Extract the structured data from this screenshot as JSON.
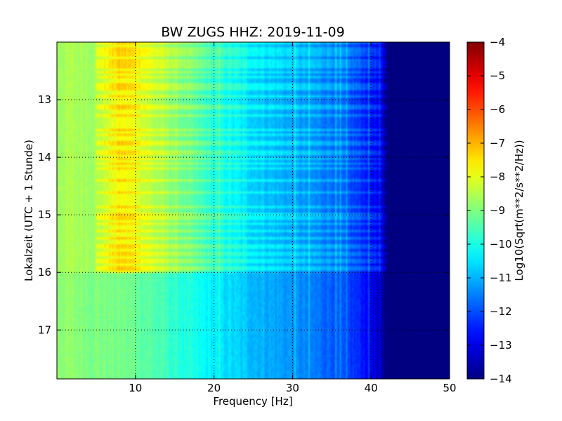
{
  "chart_data": {
    "type": "heatmap",
    "title": "BW ZUGS HHZ: 2019-11-09",
    "xlabel": "Frequency [Hz]",
    "ylabel": "Lokalzeit (UTC + 1 Stunde)",
    "xlim": [
      0,
      50
    ],
    "ylim": [
      17.85,
      12.0
    ],
    "y_axis_inverted": true,
    "x_ticks": [
      10,
      20,
      30,
      40,
      50
    ],
    "y_ticks": [
      13,
      14,
      15,
      16,
      17
    ],
    "grid": true,
    "colorbar": {
      "label": "Log10(Sqrt(m**2/s**2/Hz))",
      "range": [
        -14,
        -4
      ],
      "ticks": [
        -14,
        -13,
        -12,
        -11,
        -10,
        -9,
        -8,
        -7,
        -6,
        -5,
        -4
      ],
      "colormap": "jet"
    },
    "spectral_profile": {
      "frequency_hz": [
        0,
        5,
        8,
        10,
        12,
        15,
        20,
        25,
        30,
        35,
        38,
        40,
        41,
        42,
        50
      ],
      "log10_amplitude_quiet": [
        -8.8,
        -9.0,
        -9.1,
        -9.2,
        -9.4,
        -9.8,
        -10.4,
        -10.9,
        -11.3,
        -11.8,
        -12.3,
        -12.8,
        -13.5,
        -14.0,
        -14.0
      ],
      "log10_amplitude_noisy": [
        -8.6,
        -8.6,
        -7.8,
        -8.0,
        -8.5,
        -9.0,
        -10.0,
        -10.7,
        -11.2,
        -11.6,
        -12.2,
        -12.6,
        -13.0,
        -14.0,
        -14.0
      ]
    },
    "elevated_noise_period_hours": [
      12.0,
      16.0
    ],
    "noise_peak_frequencies_hz": [
      8,
      10.5
    ]
  }
}
